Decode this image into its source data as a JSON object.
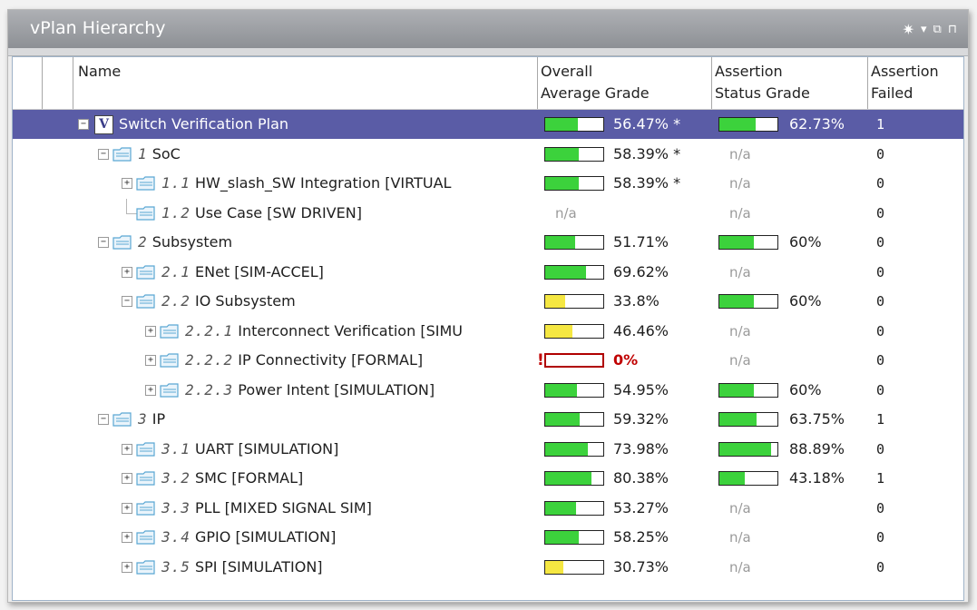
{
  "panel": {
    "title": "vPlan Hierarchy",
    "icons": [
      "gear-icon",
      "dropdown-icon",
      "restore-icon",
      "pin-icon"
    ]
  },
  "columns": {
    "name": "Name",
    "overall_line1": "Overall",
    "overall_line2": "Average Grade",
    "status_line1": "Assertion",
    "status_line2": "Status Grade",
    "failed_line1": "Assertion",
    "failed_line2": "Failed"
  },
  "colors": {
    "selected_row": "#5a5ca6",
    "bar_green": "#3cd23c",
    "bar_yellow": "#f5e742",
    "bar_zero_border": "#b00000",
    "na_text": "#9a9a9a"
  },
  "rows": [
    {
      "idx": "",
      "name": "Switch Verification Plan",
      "type": "plan",
      "depth": 0,
      "toggle": "−",
      "selected": true,
      "overall": {
        "text": "56.47% *",
        "value": 56.47,
        "color": "green"
      },
      "status": {
        "text": "62.73%",
        "value": 62.73
      },
      "failed": "1"
    },
    {
      "idx": "1",
      "name": "SoC",
      "type": "folder",
      "depth": 1,
      "toggle": "−",
      "overall": {
        "text": "58.39% *",
        "value": 58.39,
        "color": "green"
      },
      "status": {
        "text": "n/a"
      },
      "failed": "0"
    },
    {
      "idx": "1.1",
      "name": "HW_slash_SW Integration [VIRTUAL",
      "type": "folder",
      "depth": 2,
      "toggle": "+",
      "overall": {
        "text": "58.39% *",
        "value": 58.39,
        "color": "green"
      },
      "status": {
        "text": "n/a"
      },
      "failed": "0"
    },
    {
      "idx": "1.2",
      "name": "Use Case [SW DRIVEN]",
      "type": "folder",
      "depth": 2,
      "toggle": "",
      "overall": {
        "text": "n/a"
      },
      "status": {
        "text": "n/a"
      },
      "failed": "0"
    },
    {
      "idx": "2",
      "name": "Subsystem",
      "type": "folder",
      "depth": 1,
      "toggle": "−",
      "overall": {
        "text": "51.71%",
        "value": 51.71,
        "color": "green"
      },
      "status": {
        "text": "60%",
        "value": 60
      },
      "failed": "0"
    },
    {
      "idx": "2.1",
      "name": "ENet [SIM-ACCEL]",
      "type": "folder",
      "depth": 2,
      "toggle": "+",
      "overall": {
        "text": "69.62%",
        "value": 69.62,
        "color": "green"
      },
      "status": {
        "text": "n/a"
      },
      "failed": "0"
    },
    {
      "idx": "2.2",
      "name": "IO Subsystem",
      "type": "folder",
      "depth": 2,
      "toggle": "−",
      "overall": {
        "text": "33.8%",
        "value": 33.8,
        "color": "yellow"
      },
      "status": {
        "text": "60%",
        "value": 60
      },
      "failed": "0"
    },
    {
      "idx": "2.2.1",
      "name": "Interconnect Verification [SIMU",
      "type": "folder",
      "depth": 3,
      "toggle": "+",
      "overall": {
        "text": "46.46%",
        "value": 46.46,
        "color": "yellow"
      },
      "status": {
        "text": "n/a"
      },
      "failed": "0"
    },
    {
      "idx": "2.2.2",
      "name": "IP Connectivity [FORMAL]",
      "type": "folder",
      "depth": 3,
      "toggle": "+",
      "overall": {
        "text": "0%",
        "value": 0,
        "color": "zero",
        "mark": "!"
      },
      "status": {
        "text": "n/a"
      },
      "failed": "0"
    },
    {
      "idx": "2.2.3",
      "name": "Power Intent [SIMULATION]",
      "type": "folder",
      "depth": 3,
      "toggle": "+",
      "overall": {
        "text": "54.95%",
        "value": 54.95,
        "color": "green"
      },
      "status": {
        "text": "60%",
        "value": 60
      },
      "failed": "0"
    },
    {
      "idx": "3",
      "name": "IP",
      "type": "folder",
      "depth": 1,
      "toggle": "−",
      "overall": {
        "text": "59.32%",
        "value": 59.32,
        "color": "green"
      },
      "status": {
        "text": "63.75%",
        "value": 63.75
      },
      "failed": "1"
    },
    {
      "idx": "3.1",
      "name": "UART [SIMULATION]",
      "type": "folder",
      "depth": 2,
      "toggle": "+",
      "overall": {
        "text": "73.98%",
        "value": 73.98,
        "color": "green"
      },
      "status": {
        "text": "88.89%",
        "value": 88.89
      },
      "failed": "0"
    },
    {
      "idx": "3.2",
      "name": "SMC [FORMAL]",
      "type": "folder",
      "depth": 2,
      "toggle": "+",
      "overall": {
        "text": "80.38%",
        "value": 80.38,
        "color": "green"
      },
      "status": {
        "text": "43.18%",
        "value": 43.18
      },
      "failed": "1"
    },
    {
      "idx": "3.3",
      "name": "PLL [MIXED SIGNAL SIM]",
      "type": "folder",
      "depth": 2,
      "toggle": "+",
      "overall": {
        "text": "53.27%",
        "value": 53.27,
        "color": "green"
      },
      "status": {
        "text": "n/a"
      },
      "failed": "0"
    },
    {
      "idx": "3.4",
      "name": "GPIO [SIMULATION]",
      "type": "folder",
      "depth": 2,
      "toggle": "+",
      "overall": {
        "text": "58.25%",
        "value": 58.25,
        "color": "green"
      },
      "status": {
        "text": "n/a"
      },
      "failed": "0"
    },
    {
      "idx": "3.5",
      "name": "SPI [SIMULATION]",
      "type": "folder",
      "depth": 2,
      "toggle": "+",
      "overall": {
        "text": "30.73%",
        "value": 30.73,
        "color": "yellow"
      },
      "status": {
        "text": "n/a"
      },
      "failed": "0"
    }
  ]
}
